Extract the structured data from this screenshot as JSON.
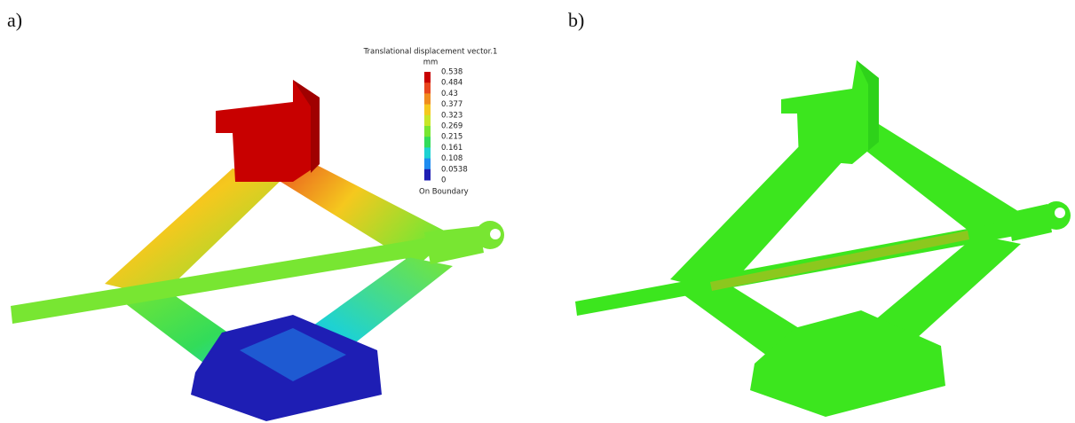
{
  "panels": [
    {
      "label": "a)"
    },
    {
      "label": "b)"
    }
  ],
  "legend": {
    "title": "Translational displacement vector.1",
    "unit": "mm",
    "ticks": [
      0.538,
      0.484,
      0.43,
      0.377,
      0.323,
      0.269,
      0.215,
      0.161,
      0.108,
      0.0538,
      0
    ],
    "colors": [
      "#c80000",
      "#e8461e",
      "#f08c1e",
      "#f5c81e",
      "#c8e628",
      "#78e632",
      "#32dc5a",
      "#1ed2d2",
      "#1e8cf0",
      "#1e1eb4"
    ],
    "note": "On Boundary"
  }
}
